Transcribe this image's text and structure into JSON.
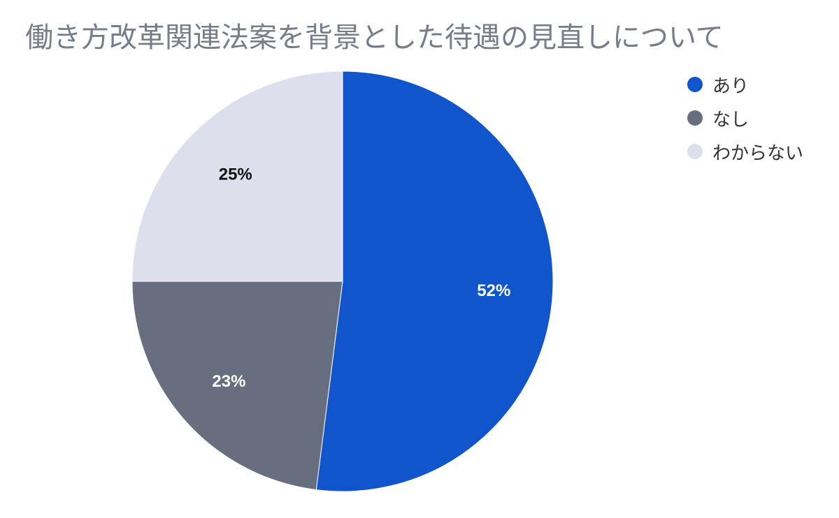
{
  "chart_data": {
    "type": "pie",
    "title": "働き方改革関連法案を背景とした待遇の見直しについて",
    "categories": [
      "あり",
      "なし",
      "わからない"
    ],
    "values": [
      52,
      23,
      25
    ],
    "labels": [
      "52%",
      "23%",
      "25%"
    ],
    "colors": [
      "#1155cc",
      "#666e80",
      "#dde0ec"
    ],
    "label_colors": [
      "#ffffff",
      "#ffffff",
      "#111111"
    ],
    "legend_position": "top-right"
  }
}
